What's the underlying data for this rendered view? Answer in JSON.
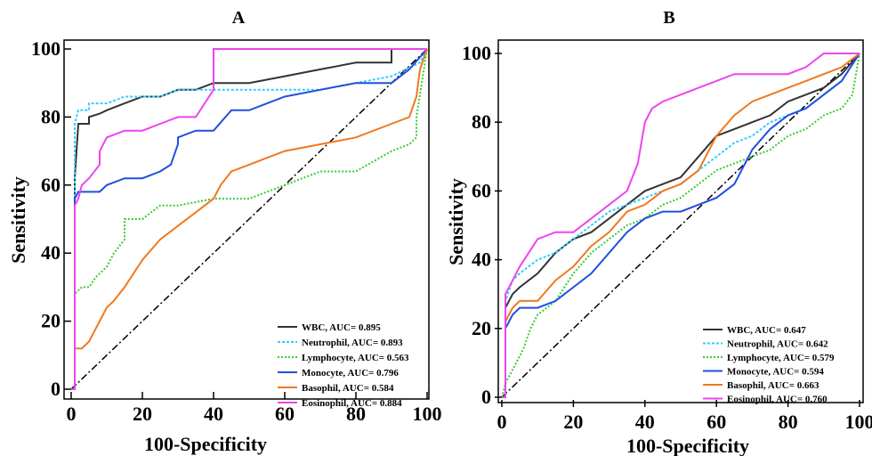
{
  "chart_data": [
    {
      "panel_label": "A",
      "type": "line",
      "xlabel": "100-Specificity",
      "ylabel": "Sensitivity",
      "xlim": [
        0,
        100
      ],
      "ylim": [
        0,
        100
      ],
      "xticks": [
        "0",
        "20",
        "40",
        "60",
        "80",
        "100"
      ],
      "yticks": [
        "0",
        "20",
        "40",
        "60",
        "80",
        "100"
      ],
      "grid": false,
      "legend_position": "bottom-right",
      "reference_line": {
        "x": [
          0,
          100
        ],
        "y": [
          0,
          100
        ],
        "color": "#000000",
        "style": "dash-dot"
      },
      "series": [
        {
          "name": "WBC, AUC= 0.895",
          "color": "#333333",
          "x": [
            0,
            1,
            1,
            2,
            3,
            4,
            5,
            5,
            8,
            10,
            15,
            20,
            25,
            30,
            35,
            40,
            50,
            60,
            70,
            80,
            90,
            90,
            100,
            100
          ],
          "y": [
            0,
            0,
            62,
            78,
            78,
            78,
            78,
            80,
            81,
            82,
            84,
            86,
            86,
            88,
            88,
            90,
            90,
            92,
            94,
            96,
            96,
            100,
            100,
            100
          ]
        },
        {
          "name": "Neutrophil, AUC= 0.893",
          "color": "#33ccff",
          "x": [
            0,
            1,
            1,
            2,
            3,
            5,
            5,
            10,
            15,
            20,
            25,
            30,
            40,
            50,
            60,
            70,
            80,
            90,
            98,
            100
          ],
          "y": [
            0,
            0,
            78,
            82,
            82,
            82,
            84,
            84,
            86,
            86,
            86,
            88,
            88,
            88,
            88,
            88,
            90,
            92,
            96,
            100
          ]
        },
        {
          "name": "Lymphocyte, AUC= 0.563",
          "color": "#33cc33",
          "x": [
            0,
            1,
            1,
            3,
            5,
            7,
            10,
            12,
            15,
            15,
            20,
            25,
            30,
            40,
            50,
            60,
            70,
            80,
            90,
            95,
            97,
            97,
            100
          ],
          "y": [
            0,
            0,
            28,
            30,
            30,
            33,
            36,
            40,
            44,
            50,
            50,
            54,
            54,
            56,
            56,
            60,
            64,
            64,
            70,
            72,
            74,
            80,
            100
          ]
        },
        {
          "name": "Monocyte, AUC= 0.796",
          "color": "#1f4fe0",
          "x": [
            0,
            1,
            1,
            2,
            5,
            8,
            10,
            15,
            20,
            25,
            28,
            30,
            30,
            35,
            40,
            45,
            50,
            60,
            70,
            80,
            90,
            95,
            100
          ],
          "y": [
            0,
            0,
            56,
            58,
            58,
            58,
            60,
            62,
            62,
            64,
            66,
            72,
            74,
            76,
            76,
            82,
            82,
            86,
            88,
            90,
            90,
            94,
            100
          ]
        },
        {
          "name": "Basophil, AUC= 0.584",
          "color": "#f07820",
          "x": [
            0,
            1,
            1,
            3,
            5,
            8,
            10,
            12,
            15,
            20,
            25,
            30,
            35,
            40,
            42,
            45,
            50,
            55,
            60,
            70,
            80,
            90,
            95,
            97,
            98,
            100
          ],
          "y": [
            0,
            0,
            12,
            12,
            14,
            20,
            24,
            26,
            30,
            38,
            44,
            48,
            52,
            56,
            60,
            64,
            66,
            68,
            70,
            72,
            74,
            78,
            80,
            86,
            94,
            100
          ]
        },
        {
          "name": "Eosinophil, AUC= 0.884",
          "color": "#ee44ee",
          "x": [
            0,
            1,
            1,
            2,
            3,
            5,
            8,
            8,
            10,
            15,
            20,
            25,
            30,
            35,
            40,
            40,
            50,
            60,
            70,
            80,
            90,
            100
          ],
          "y": [
            0,
            0,
            54,
            56,
            60,
            62,
            66,
            70,
            74,
            76,
            76,
            78,
            80,
            80,
            88,
            100,
            100,
            100,
            100,
            100,
            100,
            100
          ]
        }
      ]
    },
    {
      "panel_label": "B",
      "type": "line",
      "xlabel": "100-Specificity",
      "ylabel": "Sensitivity",
      "xlim": [
        0,
        100
      ],
      "ylim": [
        0,
        100
      ],
      "xticks": [
        "0",
        "20",
        "40",
        "60",
        "80",
        "100"
      ],
      "yticks": [
        "0",
        "20",
        "40",
        "60",
        "80",
        "100"
      ],
      "grid": false,
      "legend_position": "bottom-right",
      "reference_line": {
        "x": [
          0,
          100
        ],
        "y": [
          0,
          100
        ],
        "color": "#000000",
        "style": "dash-dot"
      },
      "series": [
        {
          "name": "WBC, AUC= 0.647",
          "color": "#333333",
          "x": [
            0,
            1,
            1,
            3,
            5,
            10,
            15,
            20,
            25,
            30,
            35,
            40,
            45,
            50,
            55,
            60,
            65,
            70,
            75,
            80,
            85,
            90,
            95,
            100
          ],
          "y": [
            0,
            0,
            26,
            30,
            32,
            36,
            42,
            46,
            48,
            52,
            56,
            60,
            62,
            64,
            70,
            76,
            78,
            80,
            82,
            86,
            88,
            90,
            94,
            100
          ]
        },
        {
          "name": "Neutrophil, AUC= 0.642",
          "color": "#33ccff",
          "x": [
            0,
            1,
            1,
            3,
            5,
            10,
            15,
            20,
            25,
            30,
            35,
            40,
            45,
            50,
            55,
            60,
            65,
            70,
            75,
            80,
            85,
            90,
            95,
            100
          ],
          "y": [
            0,
            0,
            28,
            34,
            36,
            40,
            42,
            46,
            50,
            54,
            56,
            58,
            60,
            62,
            66,
            70,
            74,
            76,
            80,
            82,
            84,
            88,
            92,
            100
          ]
        },
        {
          "name": "Lymphocyte, AUC= 0.579",
          "color": "#33cc33",
          "x": [
            0,
            1,
            2,
            3,
            5,
            6,
            8,
            10,
            15,
            20,
            25,
            30,
            35,
            40,
            45,
            50,
            55,
            60,
            65,
            70,
            75,
            80,
            85,
            90,
            95,
            98,
            100
          ],
          "y": [
            0,
            4,
            6,
            8,
            12,
            14,
            20,
            24,
            28,
            36,
            42,
            46,
            50,
            52,
            56,
            58,
            62,
            66,
            68,
            70,
            72,
            76,
            78,
            82,
            84,
            88,
            100
          ]
        },
        {
          "name": "Monocyte, AUC= 0.594",
          "color": "#1f4fe0",
          "x": [
            0,
            1,
            1,
            3,
            5,
            10,
            15,
            20,
            25,
            30,
            35,
            40,
            45,
            50,
            55,
            60,
            65,
            70,
            75,
            80,
            85,
            90,
            95,
            100
          ],
          "y": [
            0,
            0,
            20,
            24,
            26,
            26,
            28,
            32,
            36,
            42,
            48,
            52,
            54,
            54,
            56,
            58,
            62,
            72,
            78,
            82,
            84,
            88,
            92,
            100
          ]
        },
        {
          "name": "Basophil, AUC= 0.663",
          "color": "#f07820",
          "x": [
            0,
            1,
            1,
            3,
            5,
            10,
            15,
            20,
            25,
            30,
            35,
            40,
            45,
            50,
            55,
            60,
            65,
            70,
            75,
            80,
            85,
            90,
            95,
            100
          ],
          "y": [
            0,
            0,
            22,
            26,
            28,
            28,
            34,
            38,
            44,
            48,
            54,
            56,
            60,
            62,
            66,
            76,
            82,
            86,
            88,
            90,
            92,
            94,
            96,
            100
          ]
        },
        {
          "name": "Eosinophil, AUC= 0.760",
          "color": "#ee44ee",
          "x": [
            0,
            1,
            1,
            3,
            5,
            10,
            15,
            20,
            25,
            30,
            35,
            38,
            40,
            42,
            45,
            50,
            55,
            60,
            65,
            70,
            80,
            85,
            90,
            95,
            100
          ],
          "y": [
            0,
            0,
            30,
            34,
            38,
            46,
            48,
            48,
            52,
            56,
            60,
            68,
            80,
            84,
            86,
            88,
            90,
            92,
            94,
            94,
            94,
            96,
            100,
            100,
            100
          ]
        }
      ]
    }
  ]
}
